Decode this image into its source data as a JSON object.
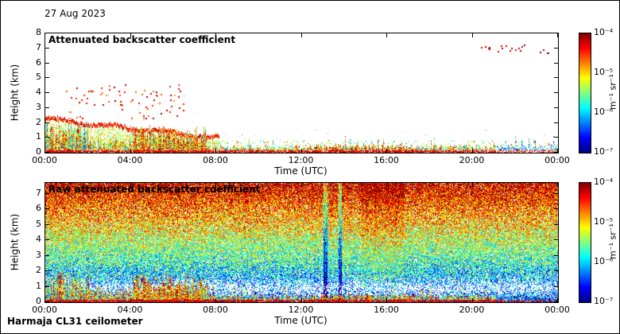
{
  "header": {
    "date": "27 Aug 2023"
  },
  "footer": {
    "instrument": "Harmaja CL31 ceilometer"
  },
  "colorbar": {
    "ticks": [
      "10⁻⁴",
      "10⁻⁵",
      "10⁻⁶",
      "10⁻⁷"
    ],
    "unit": "m⁻¹ sr⁻¹",
    "colormap": "jet",
    "scale": "log"
  },
  "panels": [
    {
      "title": "Attenuated backscatter coefficient",
      "xlabel": "Time (UTC)",
      "ylabel": "Height (km)",
      "x_ticks": [
        "00:00",
        "04:00",
        "08:00",
        "12:00",
        "16:00",
        "20:00",
        "00:00"
      ],
      "y_ticks": [
        0,
        1,
        2,
        3,
        4,
        5,
        6,
        7,
        8
      ],
      "ymax": 8
    },
    {
      "title": "Raw attenuated backscatter coefficient",
      "xlabel": "Time (UTC)",
      "ylabel": "Height (km)",
      "x_ticks": [
        "00:00",
        "04:00",
        "08:00",
        "12:00",
        "16:00",
        "20:00",
        "00:00"
      ],
      "y_ticks": [
        0,
        1,
        2,
        3,
        4,
        5,
        6,
        7
      ],
      "ymax": 7.7
    }
  ],
  "chart_data": [
    {
      "type": "heatmap",
      "title": "Attenuated backscatter coefficient",
      "xlabel": "Time (UTC)",
      "ylabel": "Height (km)",
      "x_range": [
        "00:00",
        "24:00"
      ],
      "x_tick_labels": [
        "00:00",
        "04:00",
        "08:00",
        "12:00",
        "16:00",
        "20:00",
        "00:00"
      ],
      "ylim": [
        0,
        8
      ],
      "color_scale": {
        "type": "log",
        "min": 1e-07,
        "max": 0.0001,
        "unit": "m⁻¹ sr⁻¹",
        "colormap": "jet"
      },
      "features": [
        "Continuous strong boundary-layer echo below ~0.5 km across the whole day",
        "Mixed multicolour columns up to ~2 km between 00:00 and 02:00",
        "Residual aerosol layer descending from ~2.3 km at 00:00 to ~1 km by 08:00 with orange-red top edge",
        "Intense warm-coloured plumes up to ~2 km between 04:00 and 07:30",
        "Scattered red/magenta cloud or precipitation pixels at 2–4.5 km between 01:00 and 06:00",
        "Red patches near 0.3 km between ~12:30 and ~17:00",
        "Dark-red high-cloud specks near 7 km around 20:15–22:30 and ~23:20",
        "Sparse pale blue echoes in the lowest levels after ~21:00"
      ],
      "render": {
        "seed": 1337,
        "kind": "processed",
        "ymax": 8,
        "layer": {
          "top_start_km": 2.35,
          "top_end_km": 1.05,
          "end_frac": 0.34
        },
        "ground": {
          "early_end": 0.085,
          "mid_end": 0.17,
          "plume_end": 0.315
        },
        "dots": [
          {
            "n": 80,
            "x0": 0.04,
            "x1": 0.27,
            "h0": 2.2,
            "h1": 4.6,
            "t0": 0.72,
            "t1": 1.0,
            "s": 2
          },
          {
            "n": 25,
            "x0": 0.05,
            "x1": 0.3,
            "h0": 2.0,
            "h1": 4.0,
            "t0": 0.3,
            "t1": 0.6,
            "s": 1
          },
          {
            "n": 16,
            "x0": 0.845,
            "x1": 0.935,
            "h0": 6.8,
            "h1": 7.3,
            "t0": 0.9,
            "t1": 1.0,
            "s": 2
          },
          {
            "n": 4,
            "x0": 0.965,
            "x1": 0.985,
            "h0": 6.7,
            "h1": 7.0,
            "t0": 0.88,
            "t1": 1.0,
            "s": 2
          },
          {
            "n": 20,
            "x0": 0.35,
            "x1": 1.0,
            "h0": 0.7,
            "h1": 1.6,
            "t0": 0.25,
            "t1": 0.6,
            "s": 1
          }
        ]
      }
    },
    {
      "type": "heatmap",
      "title": "Raw attenuated backscatter coefficient",
      "xlabel": "Time (UTC)",
      "ylabel": "Height (km)",
      "x_range": [
        "00:00",
        "24:00"
      ],
      "x_tick_labels": [
        "00:00",
        "04:00",
        "08:00",
        "12:00",
        "16:00",
        "20:00",
        "00:00"
      ],
      "ylim": [
        0,
        7.7
      ],
      "color_scale": {
        "type": "log",
        "min": 1e-07,
        "max": 0.0001,
        "unit": "m⁻¹ sr⁻¹",
        "colormap": "jet"
      },
      "features": [
        "Instrument noise filling the full height range, amplitude increasing with height: blue near 1–2 km, green 2–5 km, orange-red above ~5.5 km",
        "White below-threshold band around 0.5–1.5 km",
        "Same surface aerosol layer, early-morning columns and 04:00–07:30 plumes as the processed panel below ~2 km",
        "Continuous red surface return at 0–0.15 km",
        "Faint blue vertical streaks near 13:00–14:00"
      ],
      "render": {
        "seed": 7331,
        "kind": "raw",
        "ymax": 7.7,
        "ground": {
          "early_end": 0.085,
          "mid_end": 0.17,
          "plume_end": 0.315
        },
        "streaks": [
          {
            "f0": 0.542,
            "f1": 0.55,
            "dt": -0.28,
            "dpw": -0.3
          },
          {
            "f0": 0.572,
            "f1": 0.578,
            "dt": -0.28,
            "dpw": -0.25
          },
          {
            "f0": 0.615,
            "f1": 0.7,
            "dt": 0.06,
            "dpw": -0.05
          }
        ]
      }
    }
  ]
}
